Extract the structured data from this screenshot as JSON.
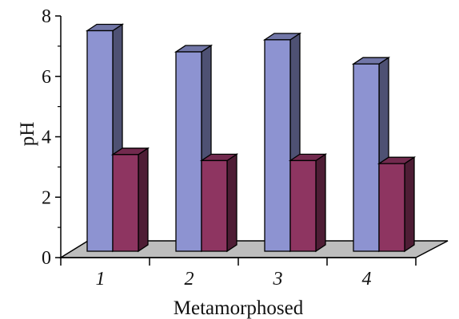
{
  "chart_data": {
    "type": "bar",
    "title": "",
    "xlabel": "Metamorphosed",
    "ylabel": "pH",
    "ylim": [
      0,
      8
    ],
    "yticks": [
      "0",
      "2",
      "4",
      "6",
      "8"
    ],
    "categories": [
      "1",
      "2",
      "3",
      "4"
    ],
    "series": [
      {
        "values": [
          7.3,
          6.6,
          7.0,
          6.2
        ],
        "color": "#8d93d1"
      },
      {
        "values": [
          3.2,
          3.0,
          3.0,
          2.9
        ],
        "color": "#8e3561"
      }
    ],
    "grid": false,
    "legend": "none"
  }
}
